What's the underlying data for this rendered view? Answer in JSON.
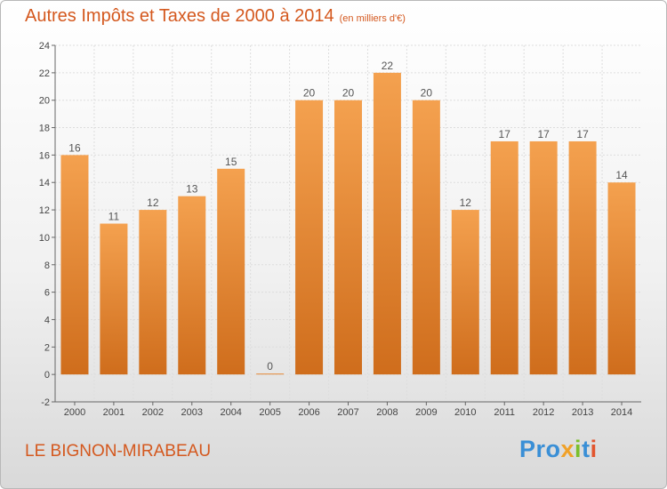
{
  "title": "Autres Impôts et Taxes de 2000 à 2014",
  "unit_note": "(en milliers d'€)",
  "commune": "LE BIGNON-MIRABEAU",
  "logo": {
    "p1": "Pro",
    "p2": "x",
    "p3": "i",
    "p4": "t",
    "p5": "i"
  },
  "colors": {
    "bar_top": "#f4a14f",
    "bar_bottom": "#cf6d1c",
    "title": "#d4581e"
  },
  "chart_data": {
    "type": "bar",
    "categories": [
      "2000",
      "2001",
      "2002",
      "2003",
      "2004",
      "2005",
      "2006",
      "2007",
      "2008",
      "2009",
      "2010",
      "2011",
      "2012",
      "2013",
      "2014"
    ],
    "values": [
      16,
      11,
      12,
      13,
      15,
      0,
      20,
      20,
      22,
      20,
      12,
      17,
      17,
      17,
      14
    ],
    "yticks": [
      -2,
      0,
      2,
      4,
      6,
      8,
      10,
      12,
      14,
      16,
      18,
      20,
      22,
      24
    ],
    "ylim": [
      -2,
      24
    ],
    "grid": true
  }
}
